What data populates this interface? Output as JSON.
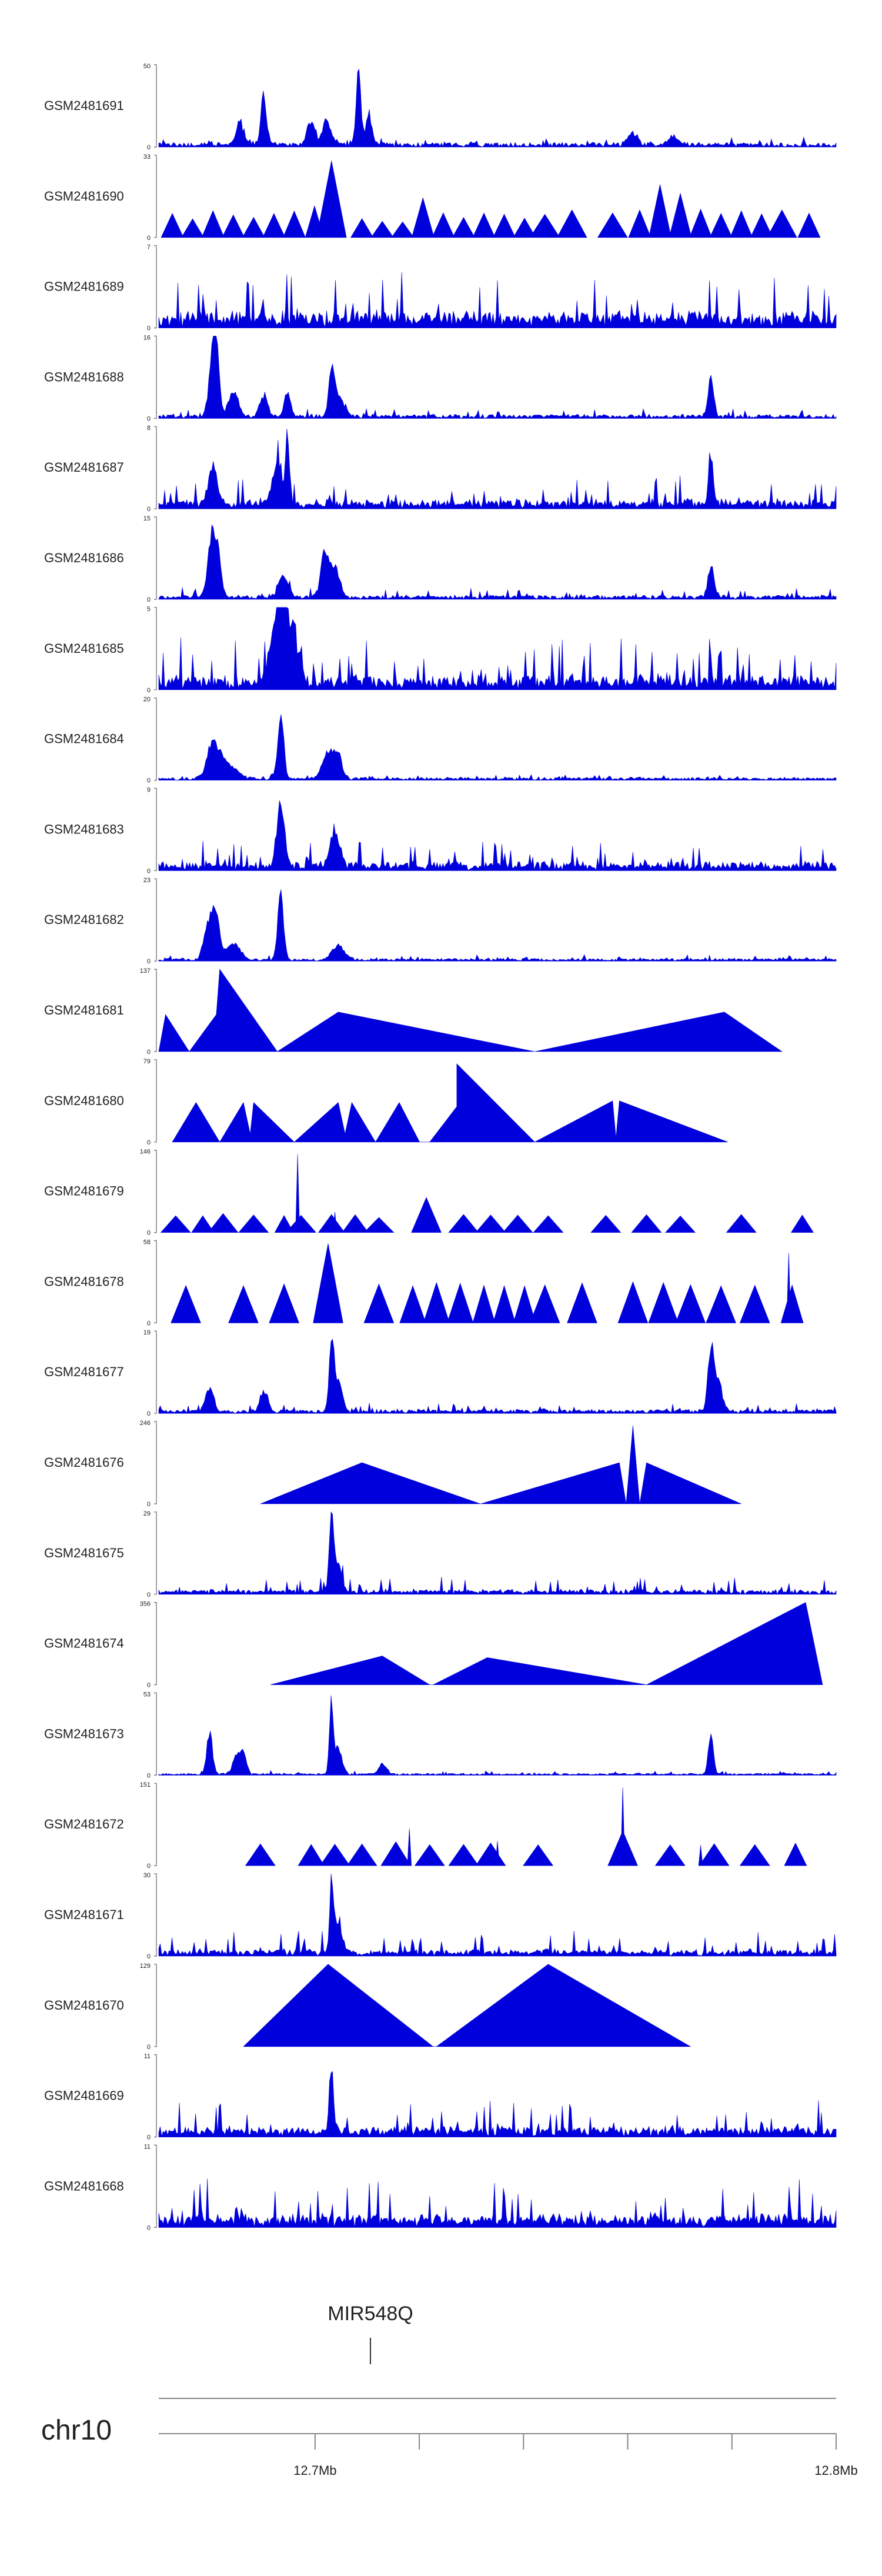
{
  "chart_data": {
    "type": "area",
    "title": "",
    "chromosome": "chr10",
    "x_range_mb": [
      12.67,
      12.8
    ],
    "x_ticks": [
      {
        "mb": 12.7,
        "label": "12.7Mb"
      },
      {
        "mb": 12.72,
        "label": ""
      },
      {
        "mb": 12.74,
        "label": ""
      },
      {
        "mb": 12.76,
        "label": ""
      },
      {
        "mb": 12.78,
        "label": ""
      },
      {
        "mb": 12.8,
        "label": "12.8Mb"
      }
    ],
    "gene": {
      "name": "MIR548Q",
      "position_mb": 12.705
    },
    "tracks": [
      {
        "name": "GSM2481691",
        "ymax": "50",
        "ymin": "0",
        "kind": "spiky",
        "seed": 11,
        "base": 0.05,
        "noise": 0.08,
        "peaks": [
          [
            0.12,
            0.3,
            0.008
          ],
          [
            0.155,
            0.7,
            0.006
          ],
          [
            0.225,
            0.35,
            0.008
          ],
          [
            0.248,
            0.35,
            0.008
          ],
          [
            0.295,
            1.0,
            0.005
          ],
          [
            0.31,
            0.4,
            0.006
          ],
          [
            0.7,
            0.15,
            0.01
          ],
          [
            0.76,
            0.12,
            0.01
          ]
        ]
      },
      {
        "name": "GSM2481690",
        "ymax": "33",
        "ymin": "0",
        "kind": "tri",
        "seed": 12,
        "tri": [
          [
            0.02,
            0.3
          ],
          [
            0.05,
            0.25
          ],
          [
            0.08,
            0.35
          ],
          [
            0.11,
            0.3
          ],
          [
            0.14,
            0.25
          ],
          [
            0.17,
            0.3
          ],
          [
            0.2,
            0.35
          ],
          [
            0.23,
            0.4
          ],
          [
            0.255,
            1.0
          ],
          [
            0.3,
            0.25
          ],
          [
            0.33,
            0.2
          ],
          [
            0.36,
            0.2
          ],
          [
            0.39,
            0.5
          ],
          [
            0.42,
            0.3
          ],
          [
            0.45,
            0.25
          ],
          [
            0.48,
            0.3
          ],
          [
            0.51,
            0.3
          ],
          [
            0.54,
            0.25
          ],
          [
            0.57,
            0.3
          ],
          [
            0.61,
            0.35
          ],
          [
            0.67,
            0.3
          ],
          [
            0.71,
            0.35
          ],
          [
            0.74,
            0.65
          ],
          [
            0.77,
            0.55
          ],
          [
            0.8,
            0.35
          ],
          [
            0.83,
            0.3
          ],
          [
            0.86,
            0.35
          ],
          [
            0.89,
            0.3
          ],
          [
            0.92,
            0.35
          ],
          [
            0.96,
            0.3
          ]
        ]
      },
      {
        "name": "GSM2481689",
        "ymax": "7",
        "ymin": "0",
        "kind": "spiky",
        "seed": 13,
        "base": 0.15,
        "noise": 0.55,
        "peaks": []
      },
      {
        "name": "GSM2481688",
        "ymax": "16",
        "ymin": "0",
        "kind": "spiky",
        "seed": 14,
        "base": 0.04,
        "noise": 0.1,
        "peaks": [
          [
            0.08,
            0.8,
            0.008
          ],
          [
            0.085,
            0.6,
            0.006
          ],
          [
            0.11,
            0.35,
            0.01
          ],
          [
            0.155,
            0.3,
            0.008
          ],
          [
            0.19,
            0.35,
            0.006
          ],
          [
            0.255,
            0.55,
            0.006
          ],
          [
            0.265,
            0.3,
            0.01
          ],
          [
            0.815,
            0.5,
            0.006
          ]
        ]
      },
      {
        "name": "GSM2481687",
        "ymax": "8",
        "ymin": "0",
        "kind": "spiky",
        "seed": 15,
        "base": 0.08,
        "noise": 0.35,
        "peaks": [
          [
            0.08,
            0.6,
            0.008
          ],
          [
            0.175,
            0.55,
            0.01
          ],
          [
            0.19,
            0.9,
            0.004
          ],
          [
            0.815,
            0.65,
            0.005
          ]
        ]
      },
      {
        "name": "GSM2481686",
        "ymax": "15",
        "ymin": "0",
        "kind": "spiky",
        "seed": 16,
        "base": 0.04,
        "noise": 0.12,
        "peaks": [
          [
            0.078,
            0.85,
            0.008
          ],
          [
            0.088,
            0.55,
            0.006
          ],
          [
            0.185,
            0.3,
            0.01
          ],
          [
            0.245,
            0.6,
            0.008
          ],
          [
            0.26,
            0.4,
            0.01
          ],
          [
            0.815,
            0.45,
            0.006
          ]
        ]
      },
      {
        "name": "GSM2481685",
        "ymax": "5",
        "ymin": "0",
        "kind": "spiky",
        "seed": 17,
        "base": 0.12,
        "noise": 0.55,
        "peaks": [
          [
            0.175,
            0.9,
            0.012
          ],
          [
            0.185,
            0.7,
            0.01
          ],
          [
            0.2,
            0.6,
            0.012
          ]
        ]
      },
      {
        "name": "GSM2481684",
        "ymax": "20",
        "ymin": "0",
        "kind": "spiky",
        "seed": 18,
        "base": 0.03,
        "noise": 0.05,
        "peaks": [
          [
            0.08,
            0.45,
            0.012
          ],
          [
            0.1,
            0.2,
            0.02
          ],
          [
            0.18,
            0.95,
            0.006
          ],
          [
            0.25,
            0.35,
            0.012
          ],
          [
            0.265,
            0.3,
            0.008
          ]
        ]
      },
      {
        "name": "GSM2481683",
        "ymax": "9",
        "ymin": "0",
        "kind": "spiky",
        "seed": 19,
        "base": 0.08,
        "noise": 0.3,
        "peaks": [
          [
            0.18,
            0.9,
            0.008
          ],
          [
            0.26,
            0.5,
            0.01
          ]
        ]
      },
      {
        "name": "GSM2481682",
        "ymax": "23",
        "ymin": "0",
        "kind": "spiky",
        "seed": 20,
        "base": 0.03,
        "noise": 0.06,
        "peaks": [
          [
            0.075,
            0.55,
            0.01
          ],
          [
            0.085,
            0.45,
            0.008
          ],
          [
            0.11,
            0.2,
            0.015
          ],
          [
            0.18,
            0.95,
            0.006
          ],
          [
            0.265,
            0.2,
            0.012
          ]
        ]
      },
      {
        "name": "GSM2481681",
        "ymax": "137",
        "ymin": "0",
        "kind": "poly",
        "pts": [
          [
            0.0,
            0.0
          ],
          [
            0.01,
            0.45
          ],
          [
            0.045,
            0.0
          ],
          [
            0.085,
            0.45
          ],
          [
            0.09,
            1.0
          ],
          [
            0.175,
            0.0
          ],
          [
            0.265,
            0.48
          ],
          [
            0.555,
            0.0
          ],
          [
            0.835,
            0.48
          ],
          [
            0.92,
            0.0
          ]
        ]
      },
      {
        "name": "GSM2481680",
        "ymax": "79",
        "ymin": "0",
        "kind": "poly",
        "pts": [
          [
            0.02,
            0.0
          ],
          [
            0.055,
            0.48
          ],
          [
            0.09,
            0.0
          ],
          [
            0.125,
            0.48
          ],
          [
            0.135,
            0.1
          ],
          [
            0.14,
            0.48
          ],
          [
            0.2,
            0.0
          ],
          [
            0.265,
            0.48
          ],
          [
            0.275,
            0.1
          ],
          [
            0.285,
            0.48
          ],
          [
            0.32,
            0.0
          ],
          [
            0.355,
            0.48
          ],
          [
            0.385,
            0.0
          ],
          [
            0.4,
            0.0
          ],
          [
            0.44,
            0.43
          ],
          [
            0.44,
            0.95
          ],
          [
            0.555,
            0.0
          ],
          [
            0.555,
            0.0
          ],
          [
            0.67,
            0.5
          ],
          [
            0.675,
            0.05
          ],
          [
            0.68,
            0.5
          ],
          [
            0.84,
            0.0
          ]
        ]
      },
      {
        "name": "GSM2481679",
        "ymax": "146",
        "ymin": "0",
        "kind": "tri",
        "seed": 21,
        "tri": [
          [
            0.025,
            0.22
          ],
          [
            0.065,
            0.22
          ],
          [
            0.095,
            0.25
          ],
          [
            0.14,
            0.22
          ],
          [
            0.185,
            0.22
          ],
          [
            0.21,
            0.22
          ],
          [
            0.255,
            0.22
          ],
          [
            0.29,
            0.22
          ],
          [
            0.325,
            0.2
          ],
          [
            0.395,
            0.45
          ],
          [
            0.45,
            0.22
          ],
          [
            0.49,
            0.22
          ],
          [
            0.53,
            0.22
          ],
          [
            0.575,
            0.22
          ],
          [
            0.66,
            0.22
          ],
          [
            0.72,
            0.22
          ],
          [
            0.77,
            0.22
          ],
          [
            0.86,
            0.22
          ],
          [
            0.95,
            0.22
          ]
        ],
        "spikes": [
          [
            0.205,
            0.95
          ],
          [
            0.26,
            0.25
          ]
        ]
      },
      {
        "name": "GSM2481678",
        "ymax": "58",
        "ymin": "0",
        "kind": "tri",
        "seed": 22,
        "tri": [
          [
            0.04,
            0.5
          ],
          [
            0.125,
            0.5
          ],
          [
            0.185,
            0.5
          ],
          [
            0.25,
            1.0
          ],
          [
            0.325,
            0.5
          ],
          [
            0.375,
            0.5
          ],
          [
            0.41,
            0.5
          ],
          [
            0.445,
            0.5
          ],
          [
            0.48,
            0.5
          ],
          [
            0.51,
            0.5
          ],
          [
            0.54,
            0.5
          ],
          [
            0.57,
            0.5
          ],
          [
            0.625,
            0.5
          ],
          [
            0.7,
            0.5
          ],
          [
            0.745,
            0.5
          ],
          [
            0.785,
            0.5
          ],
          [
            0.83,
            0.5
          ],
          [
            0.88,
            0.5
          ],
          [
            0.935,
            0.5
          ]
        ],
        "spikes": [
          [
            0.93,
            0.85
          ]
        ]
      },
      {
        "name": "GSM2481677",
        "ymax": "19",
        "ymin": "0",
        "kind": "spiky",
        "seed": 23,
        "base": 0.04,
        "noise": 0.1,
        "peaks": [
          [
            0.075,
            0.35,
            0.008
          ],
          [
            0.155,
            0.3,
            0.008
          ],
          [
            0.255,
            0.95,
            0.005
          ],
          [
            0.265,
            0.4,
            0.008
          ],
          [
            0.815,
            0.8,
            0.006
          ],
          [
            0.825,
            0.4,
            0.01
          ]
        ]
      },
      {
        "name": "GSM2481676",
        "ymax": "246",
        "ymin": "0",
        "kind": "poly",
        "pts": [
          [
            0.15,
            0.0
          ],
          [
            0.3,
            0.5
          ],
          [
            0.475,
            0.0
          ],
          [
            0.475,
            0.0
          ],
          [
            0.68,
            0.5
          ],
          [
            0.69,
            0.0
          ],
          [
            0.7,
            0.95
          ],
          [
            0.71,
            0.0
          ],
          [
            0.72,
            0.5
          ],
          [
            0.86,
            0.0
          ]
        ]
      },
      {
        "name": "GSM2481675",
        "ymax": "29",
        "ymin": "0",
        "kind": "spiky",
        "seed": 24,
        "base": 0.04,
        "noise": 0.18,
        "peaks": [
          [
            0.255,
            0.95,
            0.005
          ],
          [
            0.265,
            0.35,
            0.008
          ]
        ]
      },
      {
        "name": "GSM2481674",
        "ymax": "356",
        "ymin": "0",
        "kind": "poly",
        "pts": [
          [
            0.165,
            0.0
          ],
          [
            0.33,
            0.35
          ],
          [
            0.4,
            0.0
          ],
          [
            0.405,
            0.0
          ],
          [
            0.485,
            0.33
          ],
          [
            0.72,
            0.0
          ],
          [
            0.72,
            0.0
          ],
          [
            0.955,
            1.0
          ],
          [
            0.98,
            0.0
          ]
        ]
      },
      {
        "name": "GSM2481673",
        "ymax": "53",
        "ymin": "0",
        "kind": "spiky",
        "seed": 25,
        "base": 0.02,
        "noise": 0.05,
        "peaks": [
          [
            0.075,
            0.55,
            0.006
          ],
          [
            0.115,
            0.25,
            0.008
          ],
          [
            0.125,
            0.3,
            0.006
          ],
          [
            0.255,
            0.95,
            0.004
          ],
          [
            0.265,
            0.35,
            0.008
          ],
          [
            0.33,
            0.15,
            0.008
          ],
          [
            0.815,
            0.6,
            0.005
          ]
        ]
      },
      {
        "name": "GSM2481672",
        "ymax": "151",
        "ymin": "0",
        "kind": "tri",
        "seed": 26,
        "tri": [
          [
            0.15,
            0.28
          ],
          [
            0.225,
            0.28
          ],
          [
            0.26,
            0.28
          ],
          [
            0.3,
            0.28
          ],
          [
            0.35,
            0.3
          ],
          [
            0.4,
            0.28
          ],
          [
            0.45,
            0.28
          ],
          [
            0.49,
            0.28
          ],
          [
            0.56,
            0.28
          ],
          [
            0.685,
            0.45
          ],
          [
            0.755,
            0.28
          ],
          [
            0.82,
            0.28
          ],
          [
            0.88,
            0.28
          ],
          [
            0.94,
            0.28
          ]
        ],
        "spikes": [
          [
            0.685,
            0.95
          ],
          [
            0.37,
            0.45
          ],
          [
            0.5,
            0.3
          ],
          [
            0.8,
            0.25
          ]
        ]
      },
      {
        "name": "GSM2481671",
        "ymax": "30",
        "ymin": "0",
        "kind": "spiky",
        "seed": 27,
        "base": 0.05,
        "noise": 0.3,
        "peaks": [
          [
            0.255,
            0.95,
            0.004
          ],
          [
            0.265,
            0.45,
            0.008
          ]
        ]
      },
      {
        "name": "GSM2481670",
        "ymax": "129",
        "ymin": "0",
        "kind": "poly",
        "pts": [
          [
            0.125,
            0.0
          ],
          [
            0.25,
            1.0
          ],
          [
            0.405,
            0.0
          ],
          [
            0.41,
            0.0
          ],
          [
            0.575,
            1.0
          ],
          [
            0.785,
            0.0
          ]
        ]
      },
      {
        "name": "GSM2481669",
        "ymax": "11",
        "ymin": "0",
        "kind": "spiky",
        "seed": 28,
        "base": 0.08,
        "noise": 0.4,
        "peaks": [
          [
            0.255,
            0.95,
            0.004
          ]
        ]
      },
      {
        "name": "GSM2481668",
        "ymax": "11",
        "ymin": "0",
        "kind": "spiky",
        "seed": 29,
        "base": 0.1,
        "noise": 0.55,
        "peaks": []
      }
    ]
  },
  "colors": {
    "track_fill": "#0000dd",
    "axis": "#666666",
    "label": "#222222"
  }
}
